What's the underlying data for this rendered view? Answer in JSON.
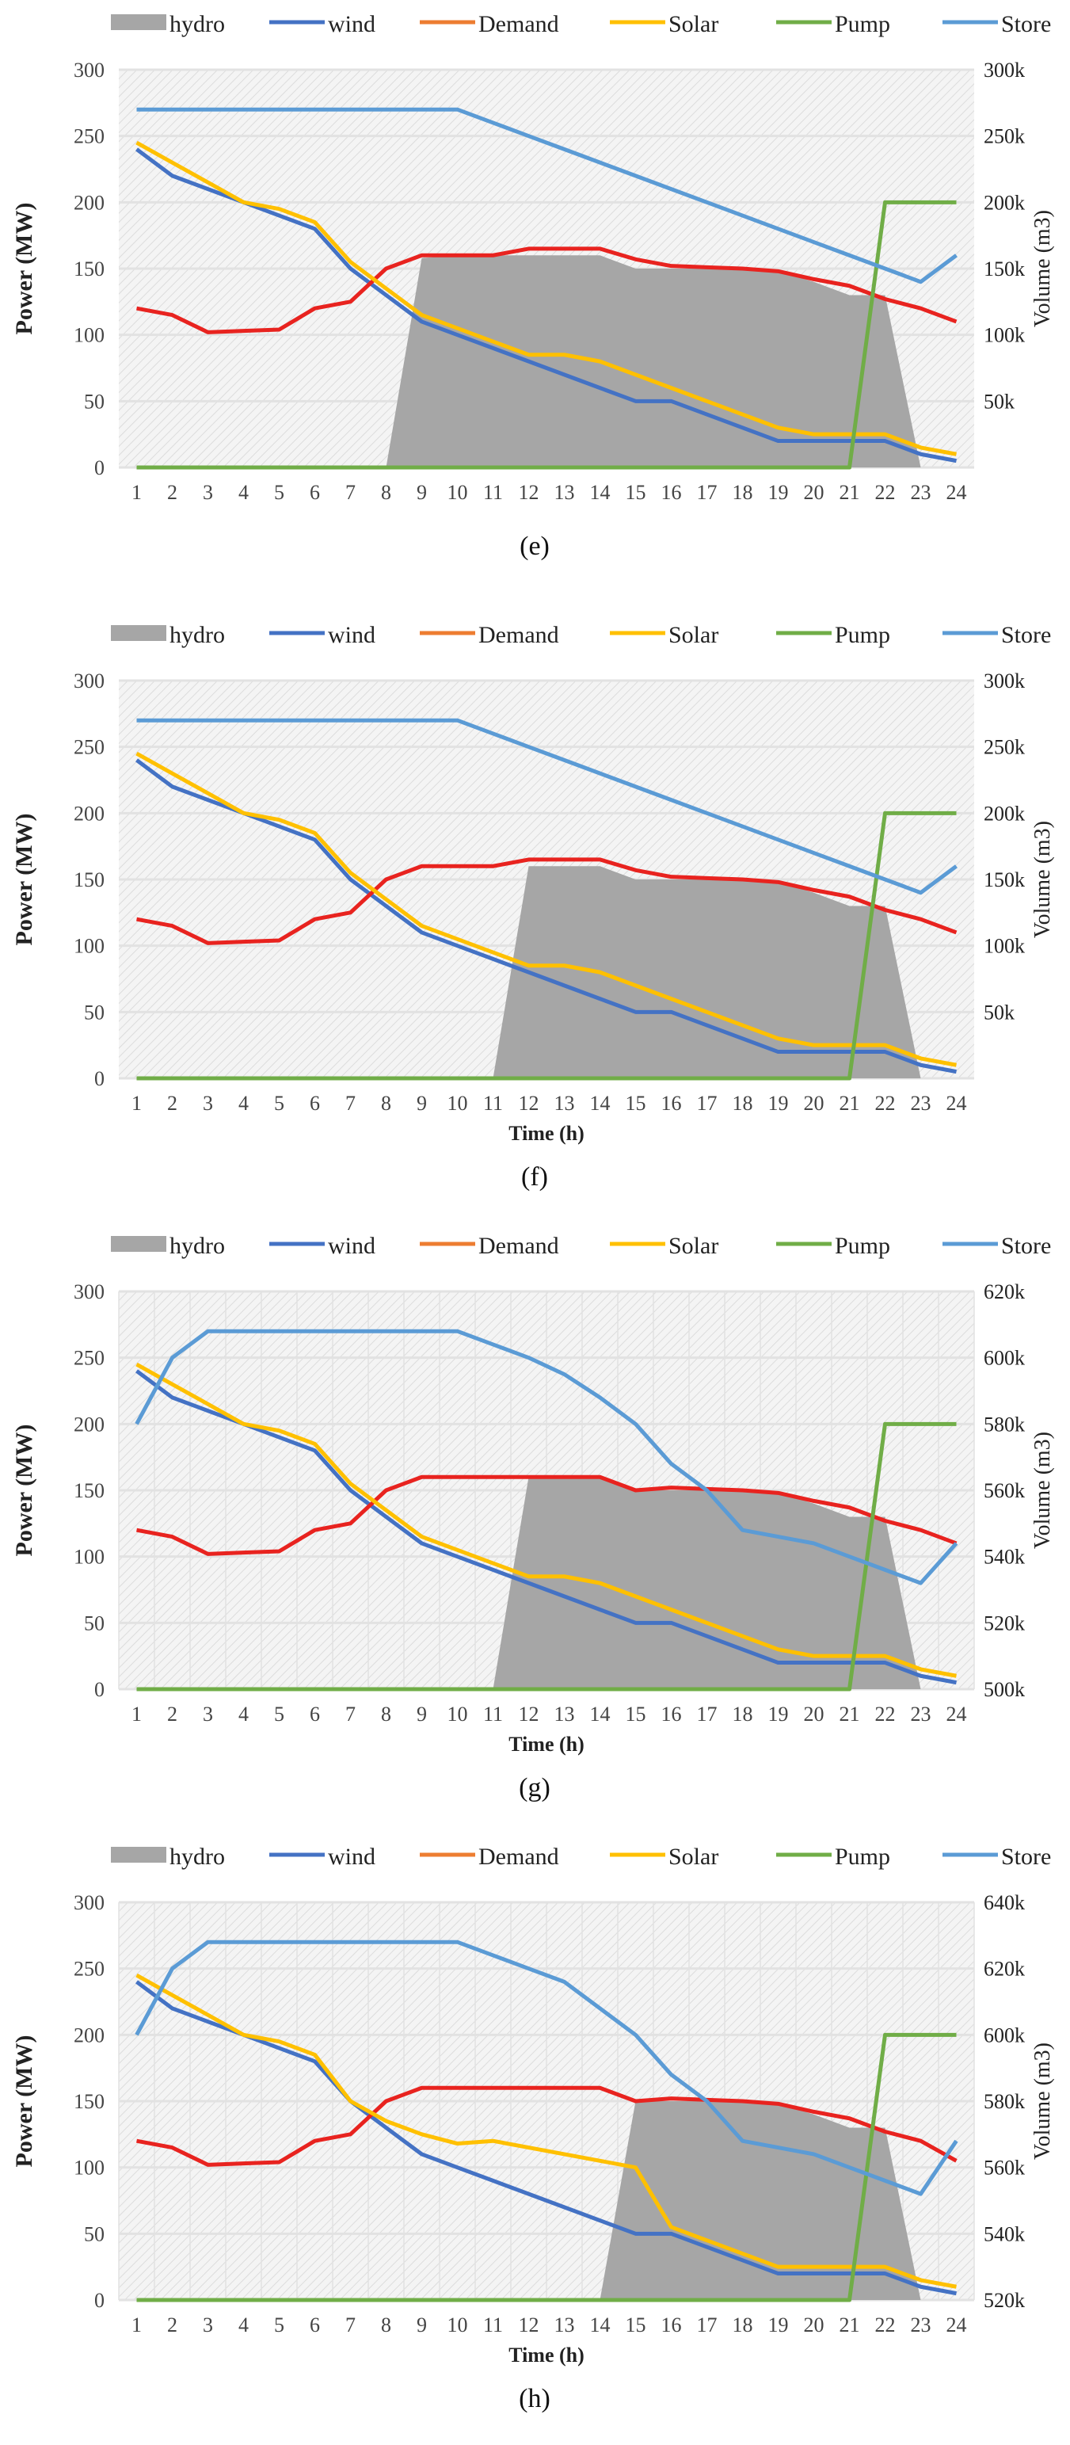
{
  "chart_data": [
    {
      "type": "line",
      "caption": "(e)",
      "xlabel": "",
      "ylabel": "Power (MW)",
      "y2label": "Volume (m3)",
      "x": [
        1,
        2,
        3,
        4,
        5,
        6,
        7,
        8,
        9,
        10,
        11,
        12,
        13,
        14,
        15,
        16,
        17,
        18,
        19,
        20,
        21,
        22,
        23,
        24
      ],
      "ylim": [
        0,
        300
      ],
      "yticks": [
        "0",
        "50",
        "100",
        "150",
        "200",
        "250",
        "300"
      ],
      "y2lim": [
        0,
        300000
      ],
      "y2ticks": [
        "50k",
        "100k",
        "150k",
        "200k",
        "250k",
        "300k"
      ],
      "y2tickvalues": [
        50000,
        100000,
        150000,
        200000,
        250000,
        300000
      ],
      "legend": [
        "hydro",
        "wind",
        "Demand",
        "Solar",
        "Pump",
        "Store"
      ],
      "legend_position": "top",
      "series": [
        {
          "name": "hydro",
          "type": "area",
          "values": [
            0,
            0,
            0,
            0,
            0,
            0,
            0,
            0,
            158,
            160,
            160,
            160,
            160,
            160,
            150,
            150,
            150,
            150,
            148,
            140,
            130,
            130,
            0,
            0
          ]
        },
        {
          "name": "wind",
          "values": [
            240,
            220,
            210,
            200,
            190,
            180,
            150,
            130,
            110,
            100,
            90,
            80,
            70,
            60,
            50,
            50,
            40,
            30,
            20,
            20,
            20,
            20,
            10,
            5
          ]
        },
        {
          "name": "Demand",
          "values": [
            120,
            115,
            102,
            103,
            104,
            120,
            125,
            150,
            160,
            160,
            160,
            165,
            165,
            165,
            157,
            152,
            151,
            150,
            148,
            142,
            137,
            127,
            120,
            110
          ]
        },
        {
          "name": "Solar",
          "values": [
            245,
            230,
            215,
            200,
            195,
            185,
            155,
            135,
            115,
            105,
            95,
            85,
            85,
            80,
            70,
            60,
            50,
            40,
            30,
            25,
            25,
            25,
            15,
            10
          ]
        },
        {
          "name": "Pump",
          "values": [
            0,
            0,
            0,
            0,
            0,
            0,
            0,
            0,
            0,
            0,
            0,
            0,
            0,
            0,
            0,
            0,
            0,
            0,
            0,
            0,
            0,
            200,
            200,
            200
          ]
        },
        {
          "name": "Store",
          "axis": "right",
          "values": [
            270000,
            270000,
            270000,
            270000,
            270000,
            270000,
            270000,
            270000,
            270000,
            270000,
            260000,
            250000,
            240000,
            230000,
            220000,
            210000,
            200000,
            190000,
            180000,
            170000,
            160000,
            150000,
            140000,
            160000
          ]
        }
      ]
    },
    {
      "type": "line",
      "caption": "(f)",
      "xlabel": "Time (h)",
      "ylabel": "Power (MW)",
      "y2label": "Volume (m3)",
      "x": [
        1,
        2,
        3,
        4,
        5,
        6,
        7,
        8,
        9,
        10,
        11,
        12,
        13,
        14,
        15,
        16,
        17,
        18,
        19,
        20,
        21,
        22,
        23,
        24
      ],
      "ylim": [
        0,
        300
      ],
      "yticks": [
        "0",
        "50",
        "100",
        "150",
        "200",
        "250",
        "300"
      ],
      "y2lim": [
        0,
        300000
      ],
      "y2ticks": [
        "50k",
        "100k",
        "150k",
        "200k",
        "250k",
        "300k"
      ],
      "y2tickvalues": [
        50000,
        100000,
        150000,
        200000,
        250000,
        300000
      ],
      "legend": [
        "hydro",
        "wind",
        "Demand",
        "Solar",
        "Pump",
        "Store"
      ],
      "legend_position": "top",
      "series": [
        {
          "name": "hydro",
          "type": "area",
          "values": [
            0,
            0,
            0,
            0,
            0,
            0,
            0,
            0,
            0,
            0,
            0,
            160,
            160,
            160,
            150,
            150,
            150,
            150,
            148,
            140,
            130,
            130,
            0,
            0
          ]
        },
        {
          "name": "wind",
          "values": [
            240,
            220,
            210,
            200,
            190,
            180,
            150,
            130,
            110,
            100,
            90,
            80,
            70,
            60,
            50,
            50,
            40,
            30,
            20,
            20,
            20,
            20,
            10,
            5
          ]
        },
        {
          "name": "Demand",
          "values": [
            120,
            115,
            102,
            103,
            104,
            120,
            125,
            150,
            160,
            160,
            160,
            165,
            165,
            165,
            157,
            152,
            151,
            150,
            148,
            142,
            137,
            127,
            120,
            110
          ]
        },
        {
          "name": "Solar",
          "values": [
            245,
            230,
            215,
            200,
            195,
            185,
            155,
            135,
            115,
            105,
            95,
            85,
            85,
            80,
            70,
            60,
            50,
            40,
            30,
            25,
            25,
            25,
            15,
            10
          ]
        },
        {
          "name": "Pump",
          "values": [
            0,
            0,
            0,
            0,
            0,
            0,
            0,
            0,
            0,
            0,
            0,
            0,
            0,
            0,
            0,
            0,
            0,
            0,
            0,
            0,
            0,
            200,
            200,
            200
          ]
        },
        {
          "name": "Store",
          "axis": "right",
          "values": [
            270000,
            270000,
            270000,
            270000,
            270000,
            270000,
            270000,
            270000,
            270000,
            270000,
            260000,
            250000,
            240000,
            230000,
            220000,
            210000,
            200000,
            190000,
            180000,
            170000,
            160000,
            150000,
            140000,
            160000
          ]
        }
      ]
    },
    {
      "type": "line",
      "caption": "(g)",
      "xlabel": "Time (h)",
      "ylabel": "Power (MW)",
      "y2label": "Volume (m3)",
      "x": [
        1,
        2,
        3,
        4,
        5,
        6,
        7,
        8,
        9,
        10,
        11,
        12,
        13,
        14,
        15,
        16,
        17,
        18,
        19,
        20,
        21,
        22,
        23,
        24
      ],
      "ylim": [
        0,
        300
      ],
      "yticks": [
        "0",
        "50",
        "100",
        "150",
        "200",
        "250",
        "300"
      ],
      "y2lim": [
        500000,
        620000
      ],
      "y2ticks": [
        "500k",
        "520k",
        "540k",
        "560k",
        "580k",
        "600k",
        "620k"
      ],
      "y2tickvalues": [
        500000,
        520000,
        540000,
        560000,
        580000,
        600000,
        620000
      ],
      "legend": [
        "hydro",
        "wind",
        "Demand",
        "Solar",
        "Pump",
        "Store"
      ],
      "legend_position": "top",
      "series": [
        {
          "name": "hydro",
          "type": "area",
          "values": [
            0,
            0,
            0,
            0,
            0,
            0,
            0,
            0,
            0,
            0,
            0,
            160,
            160,
            160,
            150,
            150,
            150,
            150,
            148,
            140,
            130,
            130,
            0,
            0
          ]
        },
        {
          "name": "wind",
          "values": [
            240,
            220,
            210,
            200,
            190,
            180,
            150,
            130,
            110,
            100,
            90,
            80,
            70,
            60,
            50,
            50,
            40,
            30,
            20,
            20,
            20,
            20,
            10,
            5
          ]
        },
        {
          "name": "Demand",
          "values": [
            120,
            115,
            102,
            103,
            104,
            120,
            125,
            150,
            160,
            160,
            160,
            160,
            160,
            160,
            150,
            152,
            151,
            150,
            148,
            142,
            137,
            127,
            120,
            110
          ]
        },
        {
          "name": "Solar",
          "values": [
            245,
            230,
            215,
            200,
            195,
            185,
            155,
            135,
            115,
            105,
            95,
            85,
            85,
            80,
            70,
            60,
            50,
            40,
            30,
            25,
            25,
            25,
            15,
            10
          ]
        },
        {
          "name": "Pump",
          "values": [
            0,
            0,
            0,
            0,
            0,
            0,
            0,
            0,
            0,
            0,
            0,
            0,
            0,
            0,
            0,
            0,
            0,
            0,
            0,
            0,
            0,
            200,
            200,
            200
          ]
        },
        {
          "name": "Store",
          "axis": "right",
          "values": [
            580000,
            600000,
            608000,
            608000,
            608000,
            608000,
            608000,
            608000,
            608000,
            608000,
            604000,
            600000,
            595000,
            588000,
            580000,
            568000,
            560000,
            548000,
            546000,
            544000,
            540000,
            536000,
            532000,
            544000
          ]
        }
      ]
    },
    {
      "type": "line",
      "caption": "(h)",
      "xlabel": "Time (h)",
      "ylabel": "Power (MW)",
      "y2label": "Volume (m3)",
      "x": [
        1,
        2,
        3,
        4,
        5,
        6,
        7,
        8,
        9,
        10,
        11,
        12,
        13,
        14,
        15,
        16,
        17,
        18,
        19,
        20,
        21,
        22,
        23,
        24
      ],
      "ylim": [
        0,
        300
      ],
      "yticks": [
        "0",
        "50",
        "100",
        "150",
        "200",
        "250",
        "300"
      ],
      "y2lim": [
        520000,
        640000
      ],
      "y2ticks": [
        "520k",
        "540k",
        "560k",
        "580k",
        "600k",
        "620k",
        "640k"
      ],
      "y2tickvalues": [
        520000,
        540000,
        560000,
        580000,
        600000,
        620000,
        640000
      ],
      "legend": [
        "hydro",
        "wind",
        "Demand",
        "Solar",
        "Pump",
        "Store"
      ],
      "legend_position": "top",
      "series": [
        {
          "name": "hydro",
          "type": "area",
          "values": [
            0,
            0,
            0,
            0,
            0,
            0,
            0,
            0,
            0,
            0,
            0,
            0,
            0,
            0,
            150,
            150,
            150,
            150,
            148,
            140,
            130,
            130,
            0,
            0
          ]
        },
        {
          "name": "wind",
          "values": [
            240,
            220,
            210,
            200,
            190,
            180,
            150,
            130,
            110,
            100,
            90,
            80,
            70,
            60,
            50,
            50,
            40,
            30,
            20,
            20,
            20,
            20,
            10,
            5
          ]
        },
        {
          "name": "Demand",
          "values": [
            120,
            115,
            102,
            103,
            104,
            120,
            125,
            150,
            160,
            160,
            160,
            160,
            160,
            160,
            150,
            152,
            151,
            150,
            148,
            142,
            137,
            127,
            120,
            105
          ]
        },
        {
          "name": "Solar",
          "values": [
            245,
            230,
            215,
            200,
            195,
            185,
            150,
            135,
            125,
            118,
            120,
            115,
            110,
            105,
            100,
            55,
            45,
            35,
            25,
            25,
            25,
            25,
            15,
            10
          ]
        },
        {
          "name": "Pump",
          "values": [
            0,
            0,
            0,
            0,
            0,
            0,
            0,
            0,
            0,
            0,
            0,
            0,
            0,
            0,
            0,
            0,
            0,
            0,
            0,
            0,
            0,
            200,
            200,
            200
          ]
        },
        {
          "name": "Store",
          "axis": "right",
          "values": [
            600000,
            620000,
            628000,
            628000,
            628000,
            628000,
            628000,
            628000,
            628000,
            628000,
            624000,
            620000,
            616000,
            608000,
            600000,
            588000,
            580000,
            568000,
            566000,
            564000,
            560000,
            556000,
            552000,
            568000
          ]
        }
      ]
    }
  ],
  "colors": {
    "hydro": "#a6a6a6",
    "wind": "#4472c4",
    "Demand_legend": "#ed7d31",
    "Demand_line": "#e8231f",
    "Solar": "#ffc000",
    "Pump": "#70ad47",
    "Store": "#5b9bd5"
  }
}
